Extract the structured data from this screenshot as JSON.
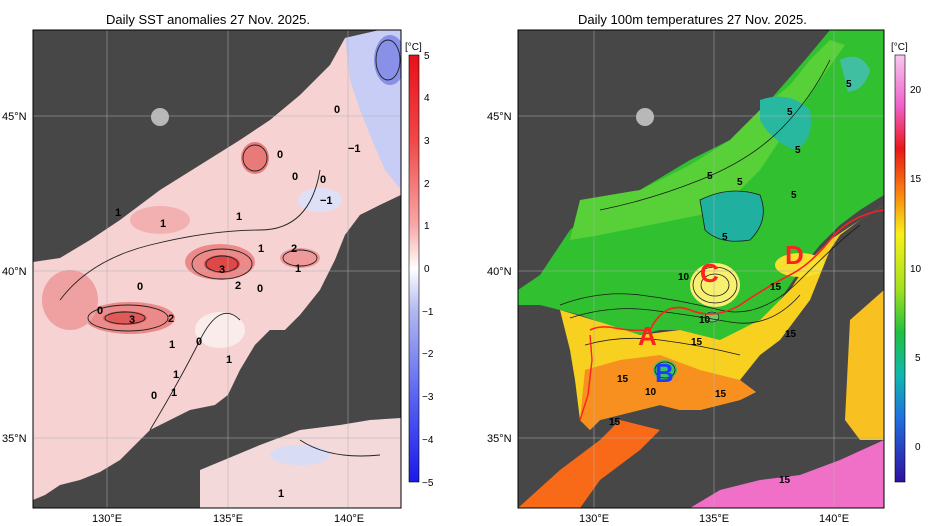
{
  "left_map": {
    "title": "Daily SST anomalies 27 Nov. 2025.",
    "unit": "[°C]",
    "lat_labels": [
      "45°N",
      "40°N",
      "35°N"
    ],
    "lon_labels": [
      "130°E",
      "135°E",
      "140°E"
    ],
    "colorbar_ticks": [
      "5",
      "4",
      "3",
      "2",
      "1",
      "0",
      "−1",
      "−2",
      "−3",
      "−4",
      "−5"
    ],
    "contour_labels": [
      "0",
      "−1",
      "1",
      "1",
      "1",
      "0",
      "0",
      "0",
      "−1",
      "1",
      "2",
      "1",
      "3",
      "2",
      "0",
      "0",
      "0",
      "3",
      "2",
      "1",
      "0",
      "1",
      "1",
      "0",
      "1",
      "1"
    ]
  },
  "right_map": {
    "title": "Daily 100m temperatures 27 Nov. 2025.",
    "unit": "[°C]",
    "lat_labels": [
      "45°N",
      "40°N",
      "35°N"
    ],
    "lon_labels": [
      "130°E",
      "135°E",
      "140°E"
    ],
    "colorbar_ticks": [
      "20",
      "15",
      "10",
      "5",
      "0"
    ],
    "contour_labels": [
      "5",
      "5",
      "5",
      "5",
      "5",
      "5",
      "5",
      "10",
      "10",
      "10",
      "15",
      "15",
      "15",
      "15",
      "15",
      "15",
      "15"
    ],
    "region_markers": [
      "A",
      "B",
      "C",
      "D"
    ]
  },
  "colors": {
    "land": "#4a4a4a",
    "ice_gray": "#b8b8b8",
    "marker_red": "#ff2020",
    "marker_blue": "#1a3cff"
  }
}
